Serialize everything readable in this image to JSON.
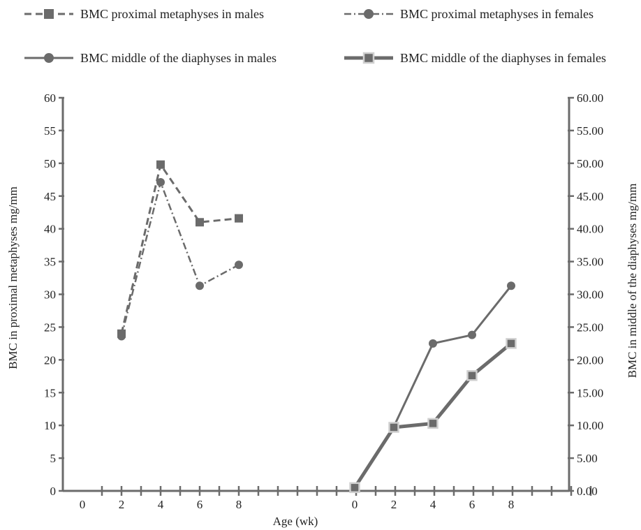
{
  "chart_data": {
    "type": "line",
    "title": "",
    "xlabel": "Age (wk)",
    "ylabel_left": "BMC in proximal metaphyses mg/mm",
    "ylabel_right": "BMC in middle of the diaphyses mg/mm",
    "yleft_ticks": [
      "0",
      "5",
      "10",
      "15",
      "20",
      "25",
      "30",
      "35",
      "40",
      "45",
      "50",
      "55",
      "60"
    ],
    "yright_ticks": [
      "0.00",
      "5.00",
      "10.00",
      "15.00",
      "20.00",
      "25.00",
      "30.00",
      "35.00",
      "40.00",
      "45.00",
      "50.00",
      "55.00",
      "60.00"
    ],
    "ylim_left": [
      0,
      60
    ],
    "ylim_right": [
      0,
      60
    ],
    "x_groups": [
      {
        "name": "left",
        "categories": [
          "0",
          "2",
          "4",
          "6",
          "8"
        ]
      },
      {
        "name": "right",
        "categories": [
          "0",
          "2",
          "4",
          "6",
          "8"
        ]
      }
    ],
    "legend_position": "top",
    "grid": false,
    "series": [
      {
        "name": "BMC proximal metaphyses in males",
        "group": "left",
        "axis": "left",
        "x": [
          2,
          4,
          6,
          8
        ],
        "values": [
          24.0,
          49.8,
          41.0,
          41.6
        ],
        "style": "dashed",
        "marker": "square",
        "color": "#6b6b6b"
      },
      {
        "name": "BMC proximal metaphyses in females",
        "group": "left",
        "axis": "left",
        "x": [
          2,
          4,
          6,
          8
        ],
        "values": [
          23.6,
          47.1,
          31.3,
          34.5
        ],
        "style": "dash-dot",
        "marker": "circle",
        "color": "#6b6b6b"
      },
      {
        "name": "BMC middle of the diaphyses in males",
        "group": "right",
        "axis": "right",
        "x": [
          2,
          4,
          6,
          8
        ],
        "values": [
          9.8,
          22.5,
          23.8,
          31.3
        ],
        "style": "solid",
        "marker": "circle",
        "color": "#6b6b6b"
      },
      {
        "name": "BMC middle of the diaphyses in females",
        "group": "right",
        "axis": "right",
        "x": [
          0,
          2,
          4,
          6,
          8
        ],
        "values": [
          0.5,
          9.7,
          10.3,
          17.6,
          22.5
        ],
        "style": "solid-thick",
        "marker": "square-light",
        "color": "#6b6b6b"
      }
    ]
  }
}
